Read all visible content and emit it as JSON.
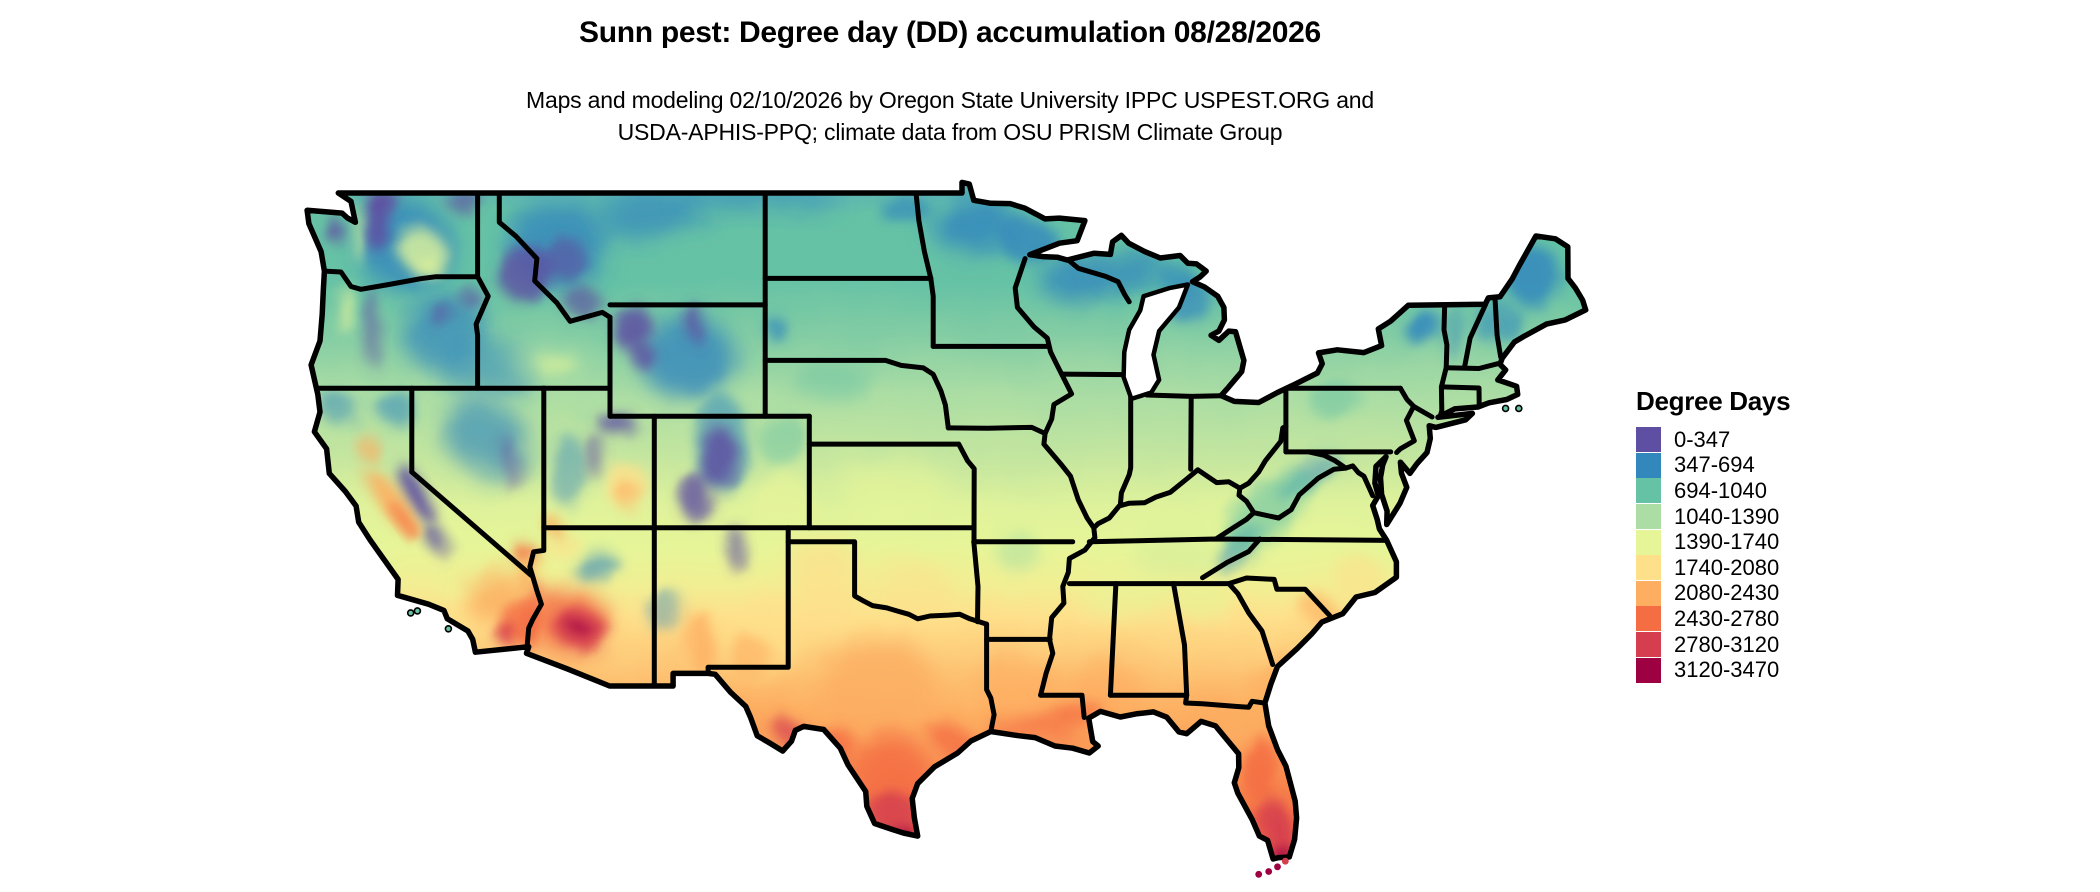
{
  "header": {
    "title": "Sunn pest: Degree day (DD) accumulation 08/28/2026",
    "subtitle_line1": "Maps and modeling 02/10/2026 by Oregon State University IPPC USPEST.ORG and",
    "subtitle_line2": "USDA-APHIS-PPQ; climate data from OSU PRISM Climate Group"
  },
  "legend": {
    "title": "Degree Days",
    "entries": [
      {
        "label": "0-347",
        "color": "#5e4fa2"
      },
      {
        "label": "347-694",
        "color": "#3288bd"
      },
      {
        "label": "694-1040",
        "color": "#66c2a5"
      },
      {
        "label": "1040-1390",
        "color": "#abdda4"
      },
      {
        "label": "1390-1740",
        "color": "#e6f598"
      },
      {
        "label": "1740-2080",
        "color": "#fee08b"
      },
      {
        "label": "2080-2430",
        "color": "#fdae61"
      },
      {
        "label": "2430-2780",
        "color": "#f46d43"
      },
      {
        "label": "2780-3120",
        "color": "#d53e4f"
      },
      {
        "label": "3120-3470",
        "color": "#9e0142"
      }
    ]
  }
}
